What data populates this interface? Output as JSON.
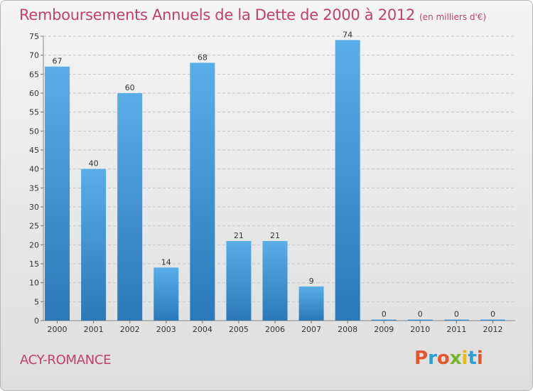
{
  "header": {
    "title": "Remboursements Annuels de la Dette de 2000 à 2012",
    "unit": "(en milliers d'€)"
  },
  "footer": {
    "city": "ACY-ROMANCE",
    "logo": "Proxiti"
  },
  "colors": {
    "title": "#c2406a",
    "bar_top": "#5aaee8",
    "bar_bottom": "#2a78b8",
    "grid": "#c8c8c8",
    "logo_letters": [
      "#e4572e",
      "#2a9fd6",
      "#e4572e",
      "#76b82a",
      "#f2b705",
      "#2a9fd6",
      "#e4572e"
    ]
  },
  "chart_data": {
    "type": "bar",
    "title": "Remboursements Annuels de la Dette de 2000 à 2012",
    "subtitle": "(en milliers d'€)",
    "categories": [
      "2000",
      "2001",
      "2002",
      "2003",
      "2004",
      "2005",
      "2006",
      "2007",
      "2008",
      "2009",
      "2010",
      "2011",
      "2012"
    ],
    "values": [
      67,
      40,
      60,
      14,
      68,
      21,
      21,
      9,
      74,
      0,
      0,
      0,
      0
    ],
    "ylim": [
      0,
      75
    ],
    "yticks": [
      0,
      5,
      10,
      15,
      20,
      25,
      30,
      35,
      40,
      45,
      50,
      55,
      60,
      65,
      70,
      75
    ],
    "grid": true,
    "data_labels": true
  }
}
